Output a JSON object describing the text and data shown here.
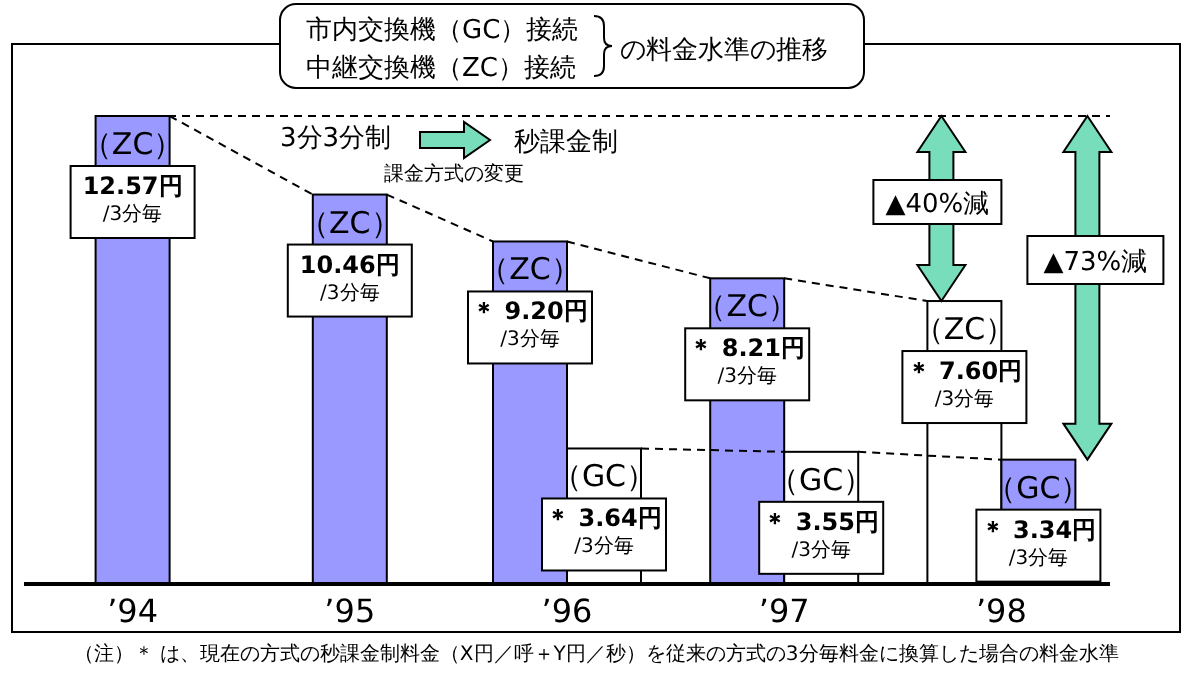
{
  "chart_data": {
    "type": "bar",
    "title": "市内交換機（GC）接続",
    "subtitle": "中継交換機（ZC）接続",
    "categories": [
      "’94",
      "’95",
      "’96",
      "’97",
      "’98"
    ],
    "series": [
      {
        "name": "（ZC）",
        "colors": [
          "#9999ff",
          "#9999ff",
          "#9999ff",
          "#9999ff",
          "#ffffff"
        ],
        "values": [
          12.57,
          10.46,
          9.2,
          8.21,
          7.6
        ],
        "value_labels": [
          "12.57円\n/3分毎",
          "10.46円\n/3分毎",
          "＊ 9.20円\n/3分毎",
          "＊ 8.21円\n/3分毎",
          "＊ 7.60円\n/3分毎"
        ],
        "line_style": "dashed"
      },
      {
        "name": "（GC）",
        "colors": [
          null,
          null,
          "#ffffff",
          "#ffffff",
          "#9999ff"
        ],
        "values": [
          null,
          null,
          3.64,
          3.55,
          3.34
        ],
        "value_labels": [
          null,
          null,
          "＊ 3.64円\n/3分毎",
          "＊ 3.55円\n/3分毎",
          "＊ 3.34円\n/3分毎"
        ],
        "line_style": "dashed"
      }
    ],
    "ylim": [
      0,
      12.57
    ],
    "tick_labels": "x",
    "grid": false,
    "ref_lines": [
      {
        "axis": "y",
        "value": 12.57,
        "line_style": "dashed"
      }
    ],
    "annotations": [
      "3分3分制",
      "秒課金制",
      "課金方式の変更",
      "▲40%減",
      "▲73%減",
      "（注）＊ は、現在の方式の秒課金制料金（X円／呼＋Y円／秒）を従来の方式の3分毎料金に換算した場合の料金水準",
      "の料金水準の推移"
    ]
  }
}
